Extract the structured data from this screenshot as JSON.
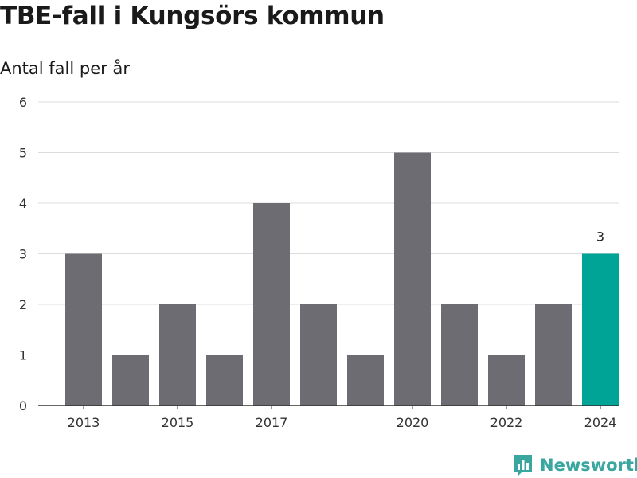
{
  "chart_data": {
    "type": "bar",
    "title": "TBE-fall i Kungsörs kommun",
    "subtitle": "Antal fall per år",
    "categories": [
      "2013",
      "2014",
      "2015",
      "2016",
      "2017",
      "2018",
      "2019",
      "2020",
      "2021",
      "2022",
      "2023",
      "2024"
    ],
    "x_tick_labels": [
      "2013",
      "2015",
      "2017",
      "2020",
      "2022",
      "2024"
    ],
    "values": [
      3,
      1,
      2,
      1,
      4,
      2,
      1,
      5,
      2,
      1,
      2,
      3
    ],
    "ylim": [
      0,
      6
    ],
    "y_ticks": [
      0,
      1,
      2,
      3,
      4,
      5,
      6
    ],
    "grid": true,
    "highlight": {
      "category": "2024",
      "label": "3"
    },
    "colors": {
      "bar": "#6d6c72",
      "highlight": "#00a497",
      "grid": "#dcdcdc",
      "axis": "#333333"
    }
  },
  "brand": {
    "name": "Newsworthy",
    "color": "#3aa6a0",
    "icon": "newsworthy-logo-icon"
  }
}
